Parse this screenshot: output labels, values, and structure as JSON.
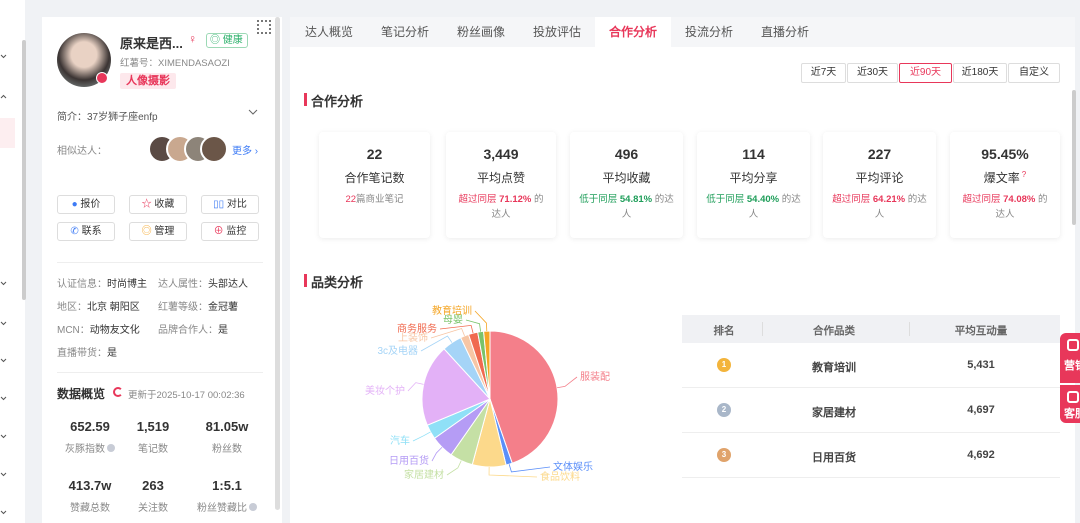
{
  "profile": {
    "name": "原来是西...",
    "status": "健康",
    "red_id": "红薯号：XIMENDASAOZI",
    "tag": "人像摄影",
    "intro": "简介：37岁狮子座enfp",
    "similar_label": "相似达人：",
    "more": "更多",
    "actions": [
      "报价",
      "收藏",
      "对比",
      "联系",
      "管理",
      "监控"
    ],
    "info": [
      {
        "label": "认证信息：",
        "value": "时尚博主"
      },
      {
        "label": "达人属性：",
        "value": "头部达人"
      },
      {
        "label": "地区：",
        "value": "北京 朝阳区"
      },
      {
        "label": "红薯等级：",
        "value": "金冠薯"
      },
      {
        "label": "MCN：",
        "value": "动物友文化"
      },
      {
        "label": "品牌合作人：",
        "value": "是"
      },
      {
        "label": "直播带货：",
        "value": "是"
      }
    ]
  },
  "overview": {
    "title": "数据概览",
    "updated": "更新于2025-10-17 00:02:36",
    "stats": [
      {
        "value": "652.59",
        "label": "灰豚指数"
      },
      {
        "value": "1,519",
        "label": "笔记数"
      },
      {
        "value": "81.05w",
        "label": "粉丝数"
      },
      {
        "value": "413.7w",
        "label": "赞藏总数"
      },
      {
        "value": "263",
        "label": "关注数"
      },
      {
        "value": "1:5.1",
        "label": "粉丝赞藏比"
      }
    ]
  },
  "tabs": [
    "达人概览",
    "笔记分析",
    "粉丝画像",
    "投放评估",
    "合作分析",
    "投流分析",
    "直播分析"
  ],
  "active_tab": 4,
  "date_ranges": [
    "近7天",
    "近30天",
    "近90天",
    "近180天",
    "自定义"
  ],
  "active_range": 2,
  "cooperation": {
    "title": "合作分析",
    "cards": [
      {
        "value": "22",
        "label": "合作笔记数",
        "note": {
          "count": "22",
          "text": "篇商业笔记"
        }
      },
      {
        "value": "3,449",
        "label": "平均点赞",
        "compare": {
          "prefix": "超过同层",
          "percent": "71.12%",
          "suffix": "的达人",
          "trend": "up"
        }
      },
      {
        "value": "496",
        "label": "平均收藏",
        "compare": {
          "prefix": "低于同层",
          "percent": "54.81%",
          "suffix": "的达人",
          "trend": "down"
        }
      },
      {
        "value": "114",
        "label": "平均分享",
        "compare": {
          "prefix": "低于同层",
          "percent": "54.40%",
          "suffix": "的达人",
          "trend": "down"
        }
      },
      {
        "value": "227",
        "label": "平均评论",
        "compare": {
          "prefix": "超过同层",
          "percent": "64.21%",
          "suffix": "的达人",
          "trend": "up"
        }
      },
      {
        "value": "95.45%",
        "label": "爆文率",
        "help": "?",
        "compare": {
          "prefix": "超过同层",
          "percent": "74.08%",
          "suffix": "的达人",
          "trend": "up"
        }
      }
    ]
  },
  "category": {
    "title": "品类分析",
    "pie": {
      "type": "pie",
      "slices": [
        {
          "name": "服装配饰",
          "value": 44.7,
          "color": "#f47f8a"
        },
        {
          "name": "文体娱乐",
          "value": 1.5,
          "color": "#5b8ff9"
        },
        {
          "name": "食品饮料",
          "value": 8,
          "color": "#fcd98b"
        },
        {
          "name": "家居建材",
          "value": 5.5,
          "color": "#c5e0a5"
        },
        {
          "name": "日用百货",
          "value": 5.5,
          "color": "#b59cf5"
        },
        {
          "name": "汽车",
          "value": 3.5,
          "color": "#8fe0f7"
        },
        {
          "name": "美妆个护",
          "value": 19.5,
          "color": "#e3b1f7"
        },
        {
          "name": "3c及电器",
          "value": 4.7,
          "color": "#a5d4f7"
        },
        {
          "name": "上装饰",
          "value": 2,
          "color": "#f7c6a5"
        },
        {
          "name": "商务服务",
          "value": 2.2,
          "color": "#f06a4f"
        },
        {
          "name": "母婴",
          "value": 1.4,
          "color": "#7ac36a"
        },
        {
          "name": "教育培训",
          "value": 1.5,
          "color": "#f5a524"
        }
      ]
    },
    "table": {
      "columns": [
        "排名",
        "合作品类",
        "平均互动量"
      ],
      "rows": [
        [
          "1",
          "教育培训",
          "5,431"
        ],
        [
          "2",
          "家居建材",
          "4,697"
        ],
        [
          "3",
          "日用百货",
          "4,692"
        ]
      ]
    }
  },
  "float_buttons": [
    "营销",
    "客服"
  ]
}
